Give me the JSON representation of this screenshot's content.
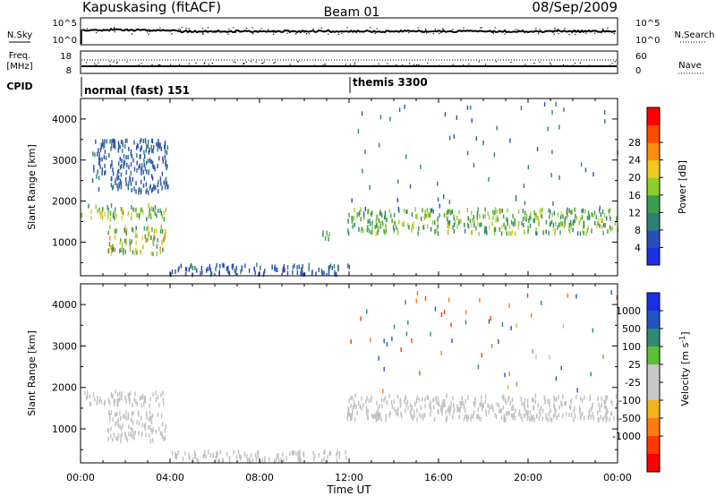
{
  "header": {
    "station": "Kapuskasing (fitACF)",
    "beam": "Beam 01",
    "date": "08/Sep/2009"
  },
  "strips": {
    "nsky": {
      "label": "N.Sky",
      "ticks": [
        "10^5",
        "10^0"
      ]
    },
    "nsearch": {
      "label": "N.Search",
      "ticks": [
        "10^5",
        "10^0"
      ]
    },
    "freq": {
      "label_top": "Freq.",
      "label_unit": "[MHz]",
      "ticks": [
        "18",
        "8"
      ]
    },
    "nave": {
      "label": "Nave",
      "ticks": [
        "60",
        "0"
      ]
    },
    "cpid": {
      "label": "CPID",
      "segments": [
        "normal (fast) 151",
        "themis 3300"
      ]
    }
  },
  "colors": {
    "power": [
      "#1a2ee6",
      "#2a4fb8",
      "#2f7f76",
      "#3c9e4e",
      "#8fcf2c",
      "#f0c81c",
      "#ff8a10",
      "#ff4a00",
      "#ff0000"
    ],
    "velocity": [
      "#1a2ee6",
      "#2255c0",
      "#2f8a76",
      "#5cc035",
      "#c8c8c8",
      "#c8c8c8",
      "#f2b21a",
      "#ff7a10",
      "#ff3800",
      "#ff0000"
    ],
    "ground_scatter": "#c0c0c0"
  },
  "chart_data": [
    {
      "type": "heatmap",
      "title": "Power",
      "xlabel": "Time UT",
      "ylabel": "Slant Range [km]",
      "xlim": [
        0,
        24
      ],
      "ylim": [
        180,
        4500
      ],
      "xticks": [
        "00:00",
        "04:00",
        "08:00",
        "12:00",
        "16:00",
        "20:00",
        "00:00"
      ],
      "yticks": [
        "1000",
        "2000",
        "3000",
        "4000"
      ],
      "colorbar": {
        "label": "Power [dB]",
        "ticks": [
          "4",
          "8",
          "12",
          "16",
          "20",
          "24",
          "28"
        ],
        "range": [
          0,
          30
        ]
      },
      "regions": [
        {
          "t": [
            0.0,
            3.8
          ],
          "r": [
            1550,
            1900
          ],
          "level": [
            8,
            20
          ]
        },
        {
          "t": [
            1.2,
            3.8
          ],
          "r": [
            700,
            1400
          ],
          "level": [
            8,
            22
          ]
        },
        {
          "t": [
            4.0,
            12.0
          ],
          "r": [
            200,
            450
          ],
          "level": [
            3,
            8
          ]
        },
        {
          "t": [
            10.8,
            11.2
          ],
          "r": [
            1000,
            1300
          ],
          "level": [
            10,
            14
          ]
        },
        {
          "t": [
            11.9,
            24.0
          ],
          "r": [
            1200,
            1800
          ],
          "level": [
            8,
            18
          ]
        },
        {
          "t": [
            12.0,
            24.0
          ],
          "r": [
            1800,
            4400
          ],
          "level": [
            4,
            10
          ]
        },
        {
          "t": [
            0.5,
            3.9
          ],
          "r": [
            2200,
            3500
          ],
          "level": [
            4,
            8
          ]
        }
      ]
    },
    {
      "type": "heatmap",
      "title": "Velocity",
      "xlabel": "Time UT",
      "ylabel": "Slant Range [km]",
      "xlim": [
        0,
        24
      ],
      "ylim": [
        180,
        4500
      ],
      "xticks": [
        "00:00",
        "04:00",
        "08:00",
        "12:00",
        "16:00",
        "20:00",
        "00:00"
      ],
      "yticks": [
        "1000",
        "2000",
        "3000",
        "4000"
      ],
      "colorbar": {
        "label": "Velocity [m s^-1]",
        "ticks": [
          "1000",
          "500",
          "100",
          "25",
          "-25",
          "-100",
          "-500",
          "-1000"
        ],
        "range": [
          -1000,
          1000
        ]
      },
      "regions": [
        {
          "t": [
            0.0,
            3.8
          ],
          "r": [
            1550,
            1900
          ],
          "value": [
            -25,
            25
          ]
        },
        {
          "t": [
            1.2,
            3.8
          ],
          "r": [
            700,
            1400
          ],
          "value": [
            -25,
            25
          ]
        },
        {
          "t": [
            4.0,
            12.0
          ],
          "r": [
            200,
            450
          ],
          "value": [
            -25,
            25
          ]
        },
        {
          "t": [
            11.9,
            24.0
          ],
          "r": [
            1200,
            1800
          ],
          "value": [
            -25,
            25
          ]
        },
        {
          "t": [
            12.0,
            24.0
          ],
          "r": [
            1800,
            4400
          ],
          "value": [
            -1000,
            1000
          ]
        }
      ]
    }
  ]
}
